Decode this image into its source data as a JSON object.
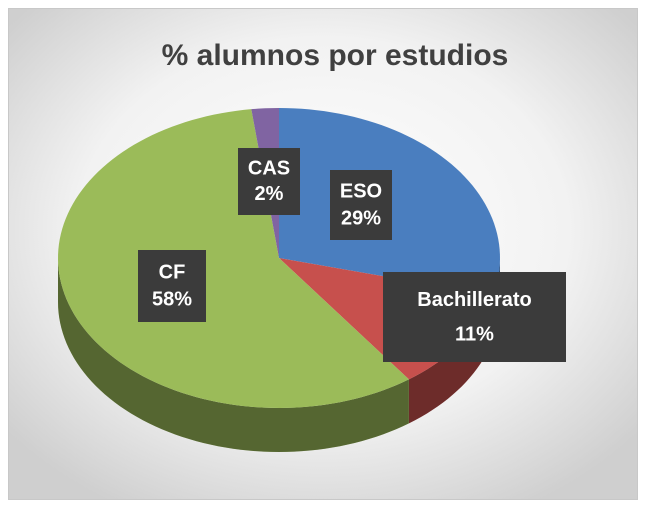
{
  "chart_data": {
    "type": "pie",
    "title": "% alumnos por estudios",
    "categories": [
      "ESO",
      "Bachillerato",
      "CF",
      "CAS"
    ],
    "values": [
      29,
      11,
      58,
      2
    ],
    "value_labels": [
      "29%",
      "11%",
      "58%",
      "2%"
    ],
    "colors": [
      "#4a7ebf",
      "#c7504d",
      "#9bbb59",
      "#8064a2"
    ]
  }
}
